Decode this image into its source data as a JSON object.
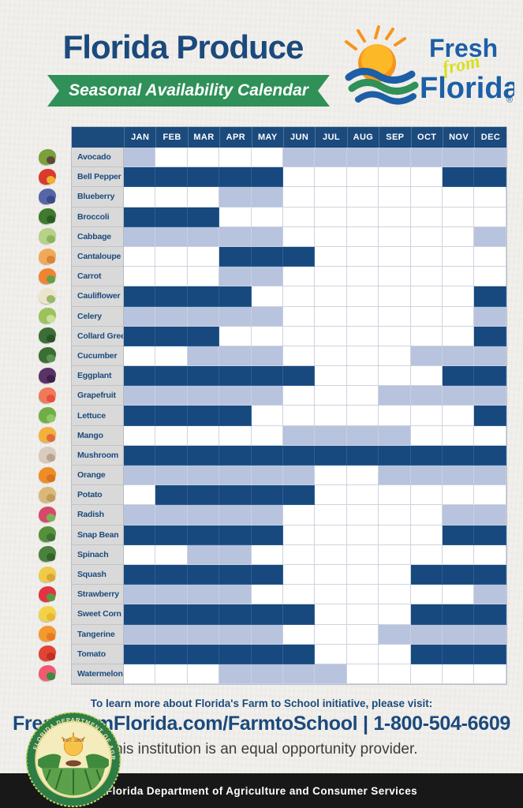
{
  "theme": {
    "navy": "#1b4a7d",
    "green": "#2f9058",
    "peak_color": "#17497e",
    "available_color": "#b8c3dd",
    "unavailable_color": "#ffffff",
    "label_bg": "#d9d9d9",
    "footer_bar_bg": "#181818"
  },
  "header": {
    "title": "Florida Produce",
    "banner_label": "Seasonal Availability Calendar",
    "logo": {
      "word1": "Fresh",
      "script": "from",
      "word2": "Florida",
      "registered": "®"
    }
  },
  "chart_data": {
    "type": "heatmap",
    "title": "Florida Produce — Seasonal Availability Calendar",
    "x_labels": [
      "JAN",
      "FEB",
      "MAR",
      "APR",
      "MAY",
      "JUN",
      "JUL",
      "AUG",
      "SEP",
      "OCT",
      "NOV",
      "DEC"
    ],
    "cell_states": {
      "P": "peak availability (dark blue)",
      "A": "available (light blue)",
      "N": "not available (white)"
    },
    "rows": [
      {
        "name": "Avocado",
        "icon": "avocado-icon",
        "c1": "#7aa03c",
        "c2": "#5c4a32",
        "cells": "ANNNNAAAAAAA"
      },
      {
        "name": "Bell Pepper",
        "icon": "bell-pepper-icon",
        "c1": "#d93a2b",
        "c2": "#f2b12e",
        "cells": "PPPPPNNNNNPP"
      },
      {
        "name": "Blueberry",
        "icon": "blueberry-icon",
        "c1": "#5566a8",
        "c2": "#3a4a86",
        "cells": "NNNAANNNNNNN"
      },
      {
        "name": "Broccoli",
        "icon": "broccoli-icon",
        "c1": "#3f7a2f",
        "c2": "#2d5c22",
        "cells": "PPPNNNNNNNNN"
      },
      {
        "name": "Cabbage",
        "icon": "cabbage-icon",
        "c1": "#b6d288",
        "c2": "#8fb35a",
        "cells": "AAAAANNNNNNA"
      },
      {
        "name": "Cantaloupe",
        "icon": "cantaloupe-icon",
        "c1": "#f0a958",
        "c2": "#d88436",
        "cells": "NNNPPPNNNNNN"
      },
      {
        "name": "Carrot",
        "icon": "carrot-icon",
        "c1": "#ef8432",
        "c2": "#62a046",
        "cells": "NNNAANNNNNNN"
      },
      {
        "name": "Cauliflower",
        "icon": "cauliflower-icon",
        "c1": "#ece4cc",
        "c2": "#9ab86a",
        "cells": "PPPPNNNNNNNP"
      },
      {
        "name": "Celery",
        "icon": "celery-icon",
        "c1": "#9cc25e",
        "c2": "#c8e09a",
        "cells": "AAAAANNNNNNA"
      },
      {
        "name": "Collard Green",
        "icon": "collard-green-icon",
        "c1": "#3c6e35",
        "c2": "#285426",
        "cells": "PPPNNNNNNNNP"
      },
      {
        "name": "Cucumber",
        "icon": "cucumber-icon",
        "c1": "#3a6e33",
        "c2": "#5c9450",
        "cells": "NNAAANNNNAAA"
      },
      {
        "name": "Eggplant",
        "icon": "eggplant-icon",
        "c1": "#5a3366",
        "c2": "#3c2248",
        "cells": "PPPPPPNNNNPP"
      },
      {
        "name": "Grapefruit",
        "icon": "grapefruit-icon",
        "c1": "#ef7a5a",
        "c2": "#e8503c",
        "cells": "AAAAANNNAAAA"
      },
      {
        "name": "Lettuce",
        "icon": "lettuce-icon",
        "c1": "#6fae46",
        "c2": "#8fc767",
        "cells": "PPPPNNNNNNNP"
      },
      {
        "name": "Mango",
        "icon": "mango-icon",
        "c1": "#f2b03c",
        "c2": "#e06a38",
        "cells": "NNNNNAAAANNN"
      },
      {
        "name": "Mushroom",
        "icon": "mushroom-icon",
        "c1": "#d9cbbd",
        "c2": "#b8a48e",
        "cells": "PPPPPPPPPPPP"
      },
      {
        "name": "Orange",
        "icon": "orange-icon",
        "c1": "#f08c28",
        "c2": "#d9731c",
        "cells": "AAAAAANNAAAA"
      },
      {
        "name": "Potato",
        "icon": "potato-icon",
        "c1": "#d9b878",
        "c2": "#c09a58",
        "cells": "NPPPPPNNNNNN"
      },
      {
        "name": "Radish",
        "icon": "radish-icon",
        "c1": "#d8486a",
        "c2": "#7ab356",
        "cells": "AAAAANNNNNAA"
      },
      {
        "name": "Snap Bean",
        "icon": "snap-bean-icon",
        "c1": "#55913d",
        "c2": "#3e7230",
        "cells": "PPPPPNNNNNPP"
      },
      {
        "name": "Spinach",
        "icon": "spinach-icon",
        "c1": "#49823c",
        "c2": "#346328",
        "cells": "NNAANNNNNNNN"
      },
      {
        "name": "Squash",
        "icon": "squash-icon",
        "c1": "#eecb4a",
        "c2": "#d9a832",
        "cells": "PPPPPNNNNPPP"
      },
      {
        "name": "Strawberry",
        "icon": "strawberry-icon",
        "c1": "#e03444",
        "c2": "#5a9a3c",
        "cells": "AAAANNNNNNNA"
      },
      {
        "name": "Sweet Corn",
        "icon": "sweet-corn-icon",
        "c1": "#f2d24a",
        "c2": "#e8b82e",
        "cells": "PPPPPPNNNPPP"
      },
      {
        "name": "Tangerine",
        "icon": "tangerine-icon",
        "c1": "#f29a30",
        "c2": "#e87a20",
        "cells": "AAAAANNNAAAA"
      },
      {
        "name": "Tomato",
        "icon": "tomato-icon",
        "c1": "#e04434",
        "c2": "#c22e22",
        "cells": "PPPPPPNNNPPP"
      },
      {
        "name": "Watermelon",
        "icon": "watermelon-icon",
        "c1": "#ef5a72",
        "c2": "#3f8a3c",
        "cells": "NNNAAAANNNNN"
      }
    ]
  },
  "footer": {
    "learn_more": "To learn more about Florida's Farm to School initiative, please visit:",
    "link_line": "FreshFromFlorida.com/FarmtoSchool | 1-800-504-6609",
    "equal_opportunity": "This institution is an equal opportunity provider.",
    "department_bar": "Florida Department of Agriculture and Consumer Services",
    "seal": {
      "top_text": "FLORIDA DEPARTMENT OF AGRICULTURE",
      "bottom_text": "CONSUMER SERVICES",
      "est": "EST. 1868"
    }
  }
}
